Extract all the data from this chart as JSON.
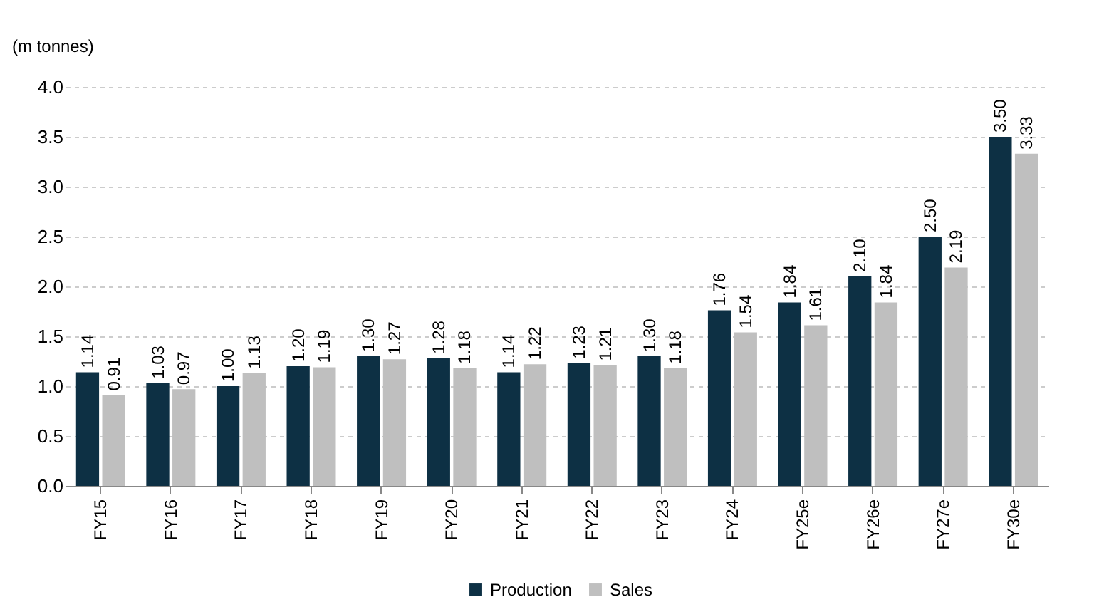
{
  "chart_data": {
    "type": "bar",
    "ylabel": "(m tonnes)",
    "categories": [
      "FY15",
      "FY16",
      "FY17",
      "FY18",
      "FY19",
      "FY20",
      "FY21",
      "FY22",
      "FY23",
      "FY24",
      "FY25e",
      "FY26e",
      "FY27e",
      "FY30e"
    ],
    "series": [
      {
        "name": "Production",
        "color": "#0d3044",
        "values": [
          1.14,
          1.03,
          1.0,
          1.2,
          1.3,
          1.28,
          1.14,
          1.23,
          1.3,
          1.76,
          1.84,
          2.1,
          2.5,
          3.5
        ],
        "value_labels": [
          "1.14",
          "1.03",
          "1.00",
          "1.20",
          "1.30",
          "1.28",
          "1.14",
          "1.23",
          "1.30",
          "1.76",
          "1.84",
          "2.10",
          "2.50",
          "3.50"
        ]
      },
      {
        "name": "Sales",
        "color": "#bfbfbf",
        "values": [
          0.91,
          0.97,
          1.13,
          1.19,
          1.27,
          1.18,
          1.22,
          1.21,
          1.18,
          1.54,
          1.61,
          1.84,
          2.19,
          3.33
        ],
        "value_labels": [
          "0.91",
          "0.97",
          "1.13",
          "1.19",
          "1.27",
          "1.18",
          "1.22",
          "1.21",
          "1.18",
          "1.54",
          "1.61",
          "1.84",
          "2.19",
          "3.33"
        ]
      }
    ],
    "ylim": [
      0,
      4
    ],
    "yticks": [
      {
        "value": 0,
        "label": "0.0"
      },
      {
        "value": 0.5,
        "label": "0.5"
      },
      {
        "value": 1,
        "label": "1.0"
      },
      {
        "value": 1.5,
        "label": "1.5"
      },
      {
        "value": 2,
        "label": "2.0"
      },
      {
        "value": 2.5,
        "label": "2.5"
      },
      {
        "value": 3,
        "label": "3.0"
      },
      {
        "value": 3.5,
        "label": "3.5"
      },
      {
        "value": 4,
        "label": "4.0"
      }
    ],
    "grid": "y",
    "legend": "bottom"
  }
}
